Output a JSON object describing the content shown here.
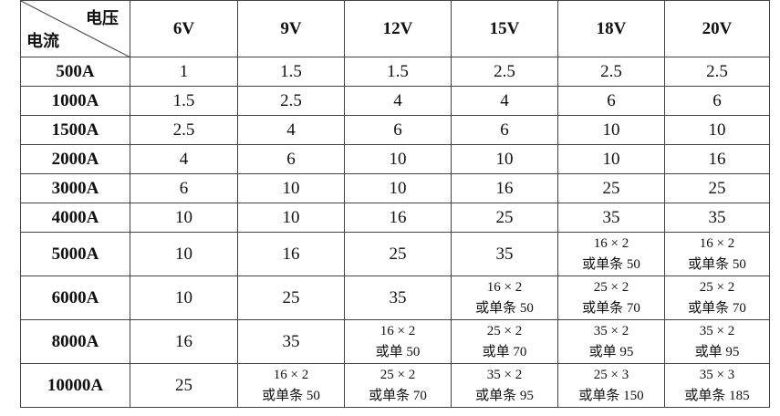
{
  "table": {
    "corner": {
      "top": "电压",
      "bottom": "电流"
    },
    "columns": [
      "6V",
      "9V",
      "12V",
      "15V",
      "18V",
      "20V"
    ],
    "rows": [
      {
        "label": "500A",
        "cells": [
          1,
          1.5,
          1.5,
          2.5,
          2.5,
          2.5
        ]
      },
      {
        "label": "1000A",
        "cells": [
          1.5,
          2.5,
          4,
          4,
          6,
          6
        ]
      },
      {
        "label": "1500A",
        "cells": [
          2.5,
          4,
          6,
          6,
          10,
          10
        ]
      },
      {
        "label": "2000A",
        "cells": [
          4,
          6,
          10,
          10,
          10,
          16
        ]
      },
      {
        "label": "3000A",
        "cells": [
          6,
          10,
          10,
          16,
          25,
          25
        ]
      },
      {
        "label": "4000A",
        "cells": [
          10,
          10,
          16,
          25,
          35,
          35
        ]
      },
      {
        "label": "5000A",
        "cells": [
          10,
          16,
          25,
          35,
          [
            "16 × 2",
            "或单条 50"
          ],
          [
            "16 × 2",
            "或单条 50"
          ]
        ]
      },
      {
        "label": "6000A",
        "cells": [
          10,
          25,
          35,
          [
            "16 × 2",
            "或单条 50"
          ],
          [
            "25 × 2",
            "或单条 70"
          ],
          [
            "25 × 2",
            "或单条 70"
          ]
        ]
      },
      {
        "label": "8000A",
        "cells": [
          16,
          35,
          [
            "16 × 2",
            "或单 50"
          ],
          [
            "25 × 2",
            "或单 70"
          ],
          [
            "35 × 2",
            "或单 95"
          ],
          [
            "35 × 2",
            "或单 95"
          ]
        ]
      },
      {
        "label": "10000A",
        "cells": [
          25,
          [
            "16 × 2",
            "或单条 50"
          ],
          [
            "25 × 2",
            "或单条 70"
          ],
          [
            "35 × 2",
            "或单条 95"
          ],
          [
            "25 × 3",
            "或单条 150"
          ],
          [
            "35 × 3",
            "或单条 185"
          ]
        ]
      }
    ]
  }
}
